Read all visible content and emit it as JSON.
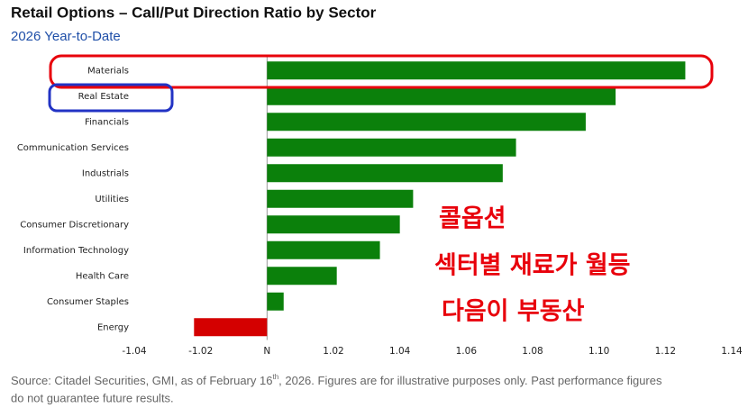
{
  "chart_data": {
    "type": "bar",
    "orientation": "horizontal",
    "title": "Retail Options – Call/Put Direction Ratio by Sector",
    "subtitle": "2026 Year-to-Date",
    "categories": [
      "Materials",
      "Real Estate",
      "Financials",
      "Communication Services",
      "Industrials",
      "Utilities",
      "Consumer Discretionary",
      "Information Technology",
      "Health Care",
      "Consumer Staples",
      "Energy"
    ],
    "values": [
      1.126,
      1.105,
      1.096,
      1.075,
      1.071,
      1.044,
      1.04,
      1.034,
      1.021,
      1.005,
      0.978
    ],
    "colors": [
      "#0b800b",
      "#0b800b",
      "#0b800b",
      "#0b800b",
      "#0b800b",
      "#0b800b",
      "#0b800b",
      "#0b800b",
      "#0b800b",
      "#0b800b",
      "#d40000"
    ],
    "baseline": 1,
    "xlim": [
      0.96,
      1.14
    ],
    "xticks": [
      {
        "value": 0.96,
        "label": "-1.04"
      },
      {
        "value": 0.98,
        "label": "-1.02"
      },
      {
        "value": 1,
        "label": "N"
      },
      1.02,
      1.04,
      1.06,
      1.08,
      {
        "value": 1.1,
        "label": "1.10"
      },
      1.12,
      1.14
    ],
    "annotations": [
      "콜옵션",
      "섹터별 재료가 월등",
      "다음이 부동산"
    ],
    "source": [
      "Source: Citadel Securities, GMI, as of February 16",
      "th",
      ", 2026. Figures are for illustrative purposes only. Past performance figures",
      "do not guarantee future results."
    ]
  }
}
